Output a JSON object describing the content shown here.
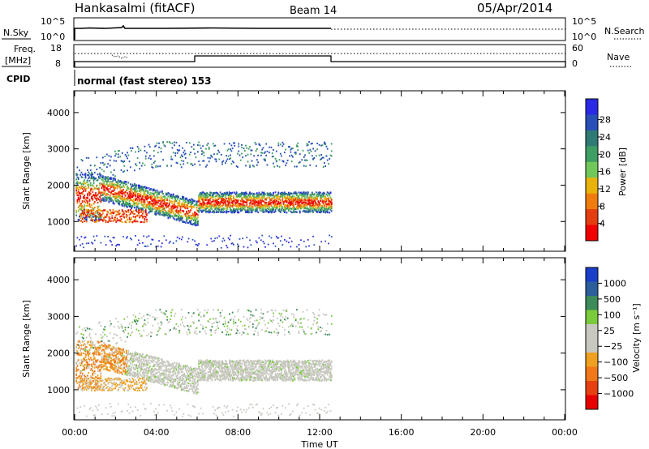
{
  "header": {
    "title": "Hankasalmi (fitACF)",
    "beam": "Beam 14",
    "date": "05/Apr/2014"
  },
  "top_panels": {
    "nsky_label": "N.Sky",
    "nsky_ticks": [
      "10^5",
      "10^0"
    ],
    "nsearch_label": "N.Search",
    "nsearch_ticks": [
      "10^5",
      "10^0"
    ],
    "freq_label_1": "Freq.",
    "freq_label_2": "[MHz]",
    "freq_ticks": [
      "18",
      "8"
    ],
    "nave_label": "Nave",
    "nave_ticks": [
      "60",
      "0"
    ],
    "cpid_label": "CPID",
    "cpid_text": "normal (fast stereo) 153"
  },
  "chart_data": [
    {
      "type": "heatmap",
      "name": "power-panel",
      "ylabel": "Slant Range [km]",
      "xlabel": "",
      "xlim": [
        0,
        24
      ],
      "ylim": [
        180,
        4600
      ],
      "yticks": [
        "1000",
        "2000",
        "3000",
        "4000"
      ],
      "colorbar_label": "Power [dB]",
      "colorbar_ticks": [
        "4",
        "8",
        "12",
        "16",
        "20",
        "24",
        "28"
      ],
      "colorbar_colors": [
        "#2a2ae6",
        "#2850b8",
        "#2f7a74",
        "#3e9e63",
        "#70c85a",
        "#e8b20a",
        "#f07c0e",
        "#e33d10",
        "#f00000"
      ],
      "data_end_hour": 12.6
    },
    {
      "type": "heatmap",
      "name": "velocity-panel",
      "ylabel": "Slant Range [km]",
      "xlabel": "Time UT",
      "xlim": [
        0,
        24
      ],
      "ylim": [
        180,
        4600
      ],
      "yticks": [
        "1000",
        "2000",
        "3000",
        "4000"
      ],
      "xticks": [
        "00:00",
        "04:00",
        "08:00",
        "12:00",
        "16:00",
        "20:00",
        "00:00"
      ],
      "colorbar_label": "Velocity [m s⁻¹]",
      "colorbar_ticks": [
        "1000",
        "500",
        "100",
        "25",
        "−25",
        "−100",
        "−500",
        "−1000"
      ],
      "colorbar_colors": [
        "#1a3fc8",
        "#2c5e9c",
        "#3d8a5a",
        "#7acb3c",
        "#c8c8c0",
        "#c8c8c0",
        "#f0a020",
        "#f07818",
        "#e84010",
        "#e80000"
      ],
      "data_end_hour": 12.6
    }
  ]
}
